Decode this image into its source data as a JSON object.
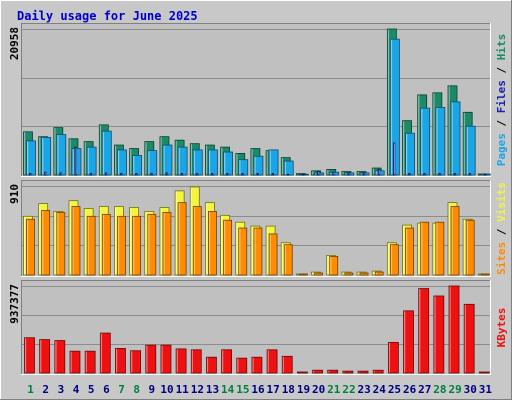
{
  "chart_data": {
    "type": "bar",
    "title": "Daily usage for June 2025",
    "colors": {
      "hits": "#1a8a68",
      "files": "#1aa6e6",
      "pages": "#1a20b0",
      "visits": "#f5f540",
      "sites": "#ff8c00",
      "kbytes": "#ee1111",
      "title": "#0000cc",
      "background": "#c0c0c0",
      "day_weekday": "#000080",
      "day_weekend": "#008040"
    },
    "x": [
      "1",
      "2",
      "3",
      "4",
      "5",
      "6",
      "7",
      "8",
      "9",
      "10",
      "11",
      "12",
      "13",
      "14",
      "15",
      "16",
      "17",
      "18",
      "19",
      "20",
      "21",
      "22",
      "23",
      "24",
      "25",
      "26",
      "27",
      "28",
      "29",
      "30",
      "31"
    ],
    "weekend_days": [
      "1",
      "7",
      "8",
      "14",
      "15",
      "21",
      "22",
      "28",
      "29"
    ],
    "panels": [
      {
        "id": "requests",
        "ylabel": "Pages / Files / Hits",
        "max_label": "20958",
        "ylim": [
          0,
          20958
        ],
        "series": [
          {
            "name": "Hits",
            "values": [
              6200,
              5500,
              6800,
              5200,
              4800,
              7200,
              4300,
              3800,
              4800,
              5500,
              5000,
              4500,
              4300,
              4000,
              3100,
              3800,
              3500,
              2500,
              200,
              600,
              800,
              500,
              500,
              1000,
              20958,
              7800,
              11500,
              11800,
              12800,
              9000,
              0
            ]
          },
          {
            "name": "Files",
            "values": [
              4900,
              5400,
              5800,
              3800,
              4000,
              6300,
              3600,
              2800,
              3500,
              4300,
              4000,
              3600,
              3600,
              3300,
              2200,
              2700,
              3600,
              2000,
              100,
              300,
              400,
              300,
              300,
              600,
              19500,
              6000,
              9600,
              9700,
              10500,
              7000,
              0
            ]
          },
          {
            "name": "Pages",
            "values": [
              200,
              400,
              300,
              4000,
              200,
              300,
              200,
              200,
              200,
              300,
              200,
              200,
              200,
              200,
              200,
              200,
              200,
              100,
              100,
              500,
              400,
              300,
              300,
              800,
              4600,
              200,
              200,
              200,
              200,
              200,
              0
            ]
          }
        ]
      },
      {
        "id": "visitors",
        "ylabel": "Sites / Visits",
        "max_label": "910",
        "ylim": [
          0,
          910
        ],
        "series": [
          {
            "name": "Visits",
            "values": [
              600,
              730,
              650,
              760,
              680,
              700,
              700,
              690,
              650,
              690,
              860,
              900,
              740,
              610,
              540,
              500,
              500,
              330,
              10,
              30,
              200,
              30,
              30,
              40,
              330,
              510,
              530,
              530,
              740,
              570,
              0
            ]
          },
          {
            "name": "Sites",
            "values": [
              570,
              660,
              640,
              700,
              600,
              620,
              600,
              600,
              620,
              640,
              740,
              700,
              650,
              560,
              480,
              480,
              420,
              310,
              5,
              20,
              190,
              20,
              20,
              30,
              310,
              480,
              540,
              540,
              700,
              560,
              0
            ]
          }
        ]
      },
      {
        "id": "kbytes",
        "ylabel": "KBytes",
        "max_label": "937377",
        "ylim": [
          0,
          937377
        ],
        "series": [
          {
            "name": "KBytes",
            "values": [
              380000,
              360000,
              350000,
              235000,
              235000,
              430000,
              265000,
              240000,
              300000,
              300000,
              260000,
              250000,
              170000,
              250000,
              160000,
              170000,
              250000,
              180000,
              5000,
              30000,
              30000,
              20000,
              20000,
              30000,
              330000,
              670000,
              910000,
              830000,
              937377,
              740000,
              0
            ]
          }
        ]
      }
    ]
  }
}
